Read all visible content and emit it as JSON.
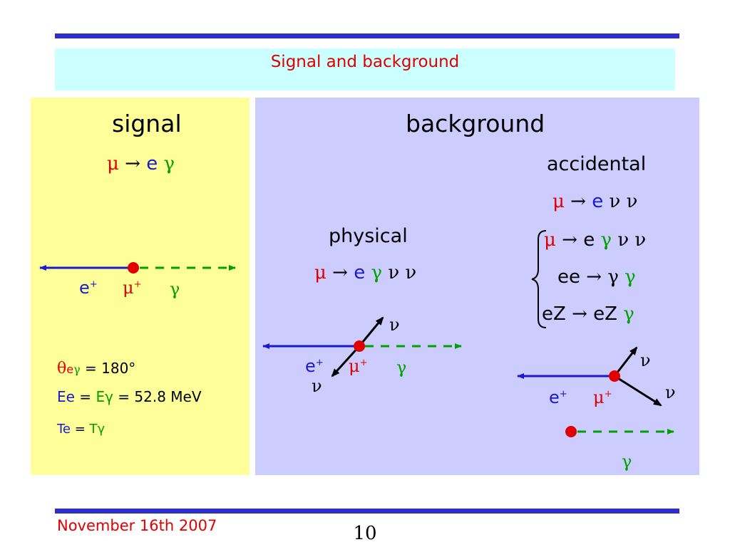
{
  "title": "Signal and background",
  "signal": {
    "heading": "signal",
    "decay": {
      "mu": "μ",
      "arrow": "→",
      "e": "e",
      "gamma": "γ"
    },
    "labels": {
      "e": "e",
      "e_charge": "+",
      "mu": "μ",
      "mu_charge": "+",
      "gamma": "γ"
    },
    "conditions": {
      "theta": "θ",
      "theta_sub_e": "e",
      "theta_sub_gamma": "γ",
      "theta_value": " = 180°",
      "energy_e": "Ee",
      "equals1": " = ",
      "energy_gamma": "Eγ",
      "energy_value": " = 52.8 MeV",
      "time_e": "Te",
      "equals2": " = ",
      "time_gamma": "Tγ"
    }
  },
  "background": {
    "heading": "background",
    "physical": {
      "heading": "physical",
      "decay": {
        "mu": "μ",
        "arrow": "→",
        "e": "e",
        "gamma": "γ",
        "nu": "ν ν"
      },
      "labels": {
        "e": "e",
        "e_charge": "+",
        "mu": "μ",
        "mu_charge": "+",
        "gamma": "γ",
        "nu_top": "ν",
        "nu_bottom": "ν"
      }
    },
    "accidental": {
      "heading": "accidental",
      "decay": {
        "mu": "μ",
        "arrow": "→",
        "e": "e",
        "nu": "ν ν"
      },
      "gamma_sources": [
        {
          "mu": "μ",
          "arrow": "→",
          "e": "e",
          "gamma": "γ",
          "nu": "ν ν"
        },
        {
          "lhs": "ee",
          "arrow": "→",
          "gamma1": "γ",
          "gamma2": "γ"
        },
        {
          "lhs": "eZ",
          "arrow": "→",
          "rhs": "eZ",
          "gamma": "γ"
        }
      ],
      "labels": {
        "e": "e",
        "e_charge": "+",
        "mu": "μ",
        "mu_charge": "+",
        "nu_top": "ν",
        "nu_bottom": "ν",
        "gamma": "γ"
      }
    }
  },
  "footer": {
    "date": "November 16th  2007",
    "page": "10"
  },
  "colors": {
    "rule": "#2d2dcc",
    "title_bg": "#ccffff",
    "signal_bg": "#ffff99",
    "background_bg": "#ccccff",
    "red": "#e00000",
    "blue": "#1a1acc",
    "green": "#00a000"
  }
}
